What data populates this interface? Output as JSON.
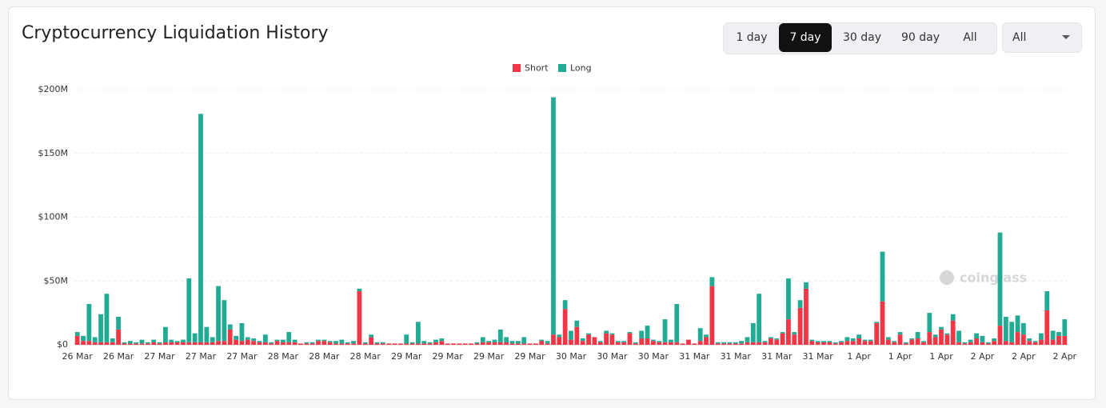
{
  "chart_data": {
    "type": "stacked_bar",
    "title": "Cryptocurrency Liquidation History",
    "watermark": "coinglass",
    "categories": [
      "26 Mar",
      null,
      null,
      null,
      null,
      null,
      null,
      "26 Mar",
      null,
      null,
      null,
      null,
      null,
      null,
      "27 Mar",
      null,
      null,
      null,
      null,
      null,
      null,
      "27 Mar",
      null,
      null,
      null,
      null,
      null,
      null,
      "27 Mar",
      null,
      null,
      null,
      null,
      null,
      null,
      "28 Mar",
      null,
      null,
      null,
      null,
      null,
      null,
      "28 Mar",
      null,
      null,
      null,
      null,
      null,
      null,
      "28 Mar",
      null,
      null,
      null,
      null,
      null,
      null,
      "29 Mar",
      null,
      null,
      null,
      null,
      null,
      null,
      "29 Mar",
      null,
      null,
      null,
      null,
      null,
      null,
      "29 Mar",
      null,
      null,
      null,
      null,
      null,
      null,
      "29 Mar",
      null,
      null,
      null,
      null,
      null,
      null,
      "30 Mar",
      null,
      null,
      null,
      null,
      null,
      null,
      "30 Mar",
      null,
      null,
      null,
      null,
      null,
      null,
      "30 Mar",
      null,
      null,
      null,
      null,
      null,
      null,
      "31 Mar",
      null,
      null,
      null,
      null,
      null,
      null,
      "31 Mar",
      null,
      null,
      null,
      null,
      null,
      null,
      "31 Mar",
      null,
      null,
      null,
      null,
      null,
      null,
      "31 Mar",
      null,
      null,
      null,
      null,
      null,
      null,
      "1 Apr",
      null,
      null,
      null,
      null,
      null,
      null,
      "1 Apr",
      null,
      null,
      null,
      null,
      null,
      null,
      "1 Apr",
      null,
      null,
      null,
      null,
      null,
      null,
      "2 Apr",
      null,
      null,
      null,
      null,
      null,
      null,
      "2 Apr",
      null,
      null,
      null,
      null,
      null,
      null,
      "2 Apr"
    ],
    "series": [
      {
        "name": "Short",
        "color": "#f23645",
        "values": [
          7,
          3,
          3,
          2,
          2,
          2,
          2,
          12,
          1,
          1,
          1,
          1,
          1,
          2,
          1,
          2,
          2,
          2,
          2,
          2,
          2,
          2,
          2,
          2,
          3,
          3,
          12,
          4,
          3,
          4,
          3,
          2,
          2,
          1,
          3,
          2,
          2,
          2,
          1,
          1,
          1,
          3,
          3,
          2,
          1,
          1,
          1,
          1,
          42,
          1,
          6,
          1,
          1,
          1,
          1,
          1,
          1,
          1,
          1,
          1,
          1,
          2,
          3,
          1,
          1,
          1,
          1,
          1,
          1,
          2,
          2,
          2,
          2,
          2,
          1,
          1,
          1,
          1,
          1,
          3,
          1,
          8,
          6,
          28,
          4,
          14,
          3,
          8,
          6,
          2,
          9,
          8,
          2,
          2,
          9,
          1,
          5,
          5,
          3,
          2,
          2,
          2,
          2,
          1,
          4,
          1,
          3,
          6,
          46,
          1,
          1,
          1,
          1,
          1,
          2,
          2,
          2,
          2,
          5,
          4,
          9,
          20,
          8,
          29,
          44,
          3,
          2,
          2,
          2,
          1,
          2,
          3,
          3,
          5,
          3,
          3,
          17,
          34,
          4,
          2,
          8,
          1,
          4,
          5,
          2,
          10,
          6,
          12,
          8,
          19,
          2,
          1,
          2,
          5,
          2,
          1,
          3,
          15,
          3,
          2,
          10,
          8,
          3,
          2,
          4,
          27,
          4,
          7,
          7
        ]
      },
      {
        "name": "Long",
        "color": "#22ab94",
        "values": [
          3,
          4,
          29,
          4,
          22,
          38,
          3,
          10,
          1,
          2,
          1,
          3,
          1,
          2,
          1,
          12,
          2,
          1,
          2,
          50,
          7,
          179,
          12,
          4,
          43,
          32,
          4,
          3,
          14,
          2,
          2,
          1,
          6,
          1,
          1,
          2,
          8,
          2,
          0,
          1,
          1,
          1,
          1,
          1,
          2,
          3,
          1,
          2,
          2,
          1,
          2,
          1,
          1,
          0,
          0,
          0,
          7,
          1,
          17,
          2,
          1,
          2,
          2,
          0,
          0,
          0,
          0,
          0,
          1,
          4,
          1,
          2,
          10,
          4,
          2,
          2,
          5,
          0,
          0,
          1,
          2,
          186,
          2,
          7,
          7,
          5,
          2,
          1,
          0,
          1,
          2,
          1,
          1,
          1,
          1,
          1,
          6,
          10,
          1,
          1,
          18,
          2,
          30,
          0,
          0,
          0,
          10,
          2,
          7,
          1,
          1,
          1,
          1,
          2,
          4,
          15,
          38,
          1,
          1,
          1,
          1,
          32,
          2,
          6,
          5,
          1,
          1,
          1,
          1,
          1,
          1,
          3,
          2,
          3,
          1,
          1,
          1,
          39,
          2,
          1,
          2,
          1,
          1,
          5,
          1,
          15,
          2,
          2,
          1,
          5,
          9,
          1,
          2,
          4,
          5,
          1,
          2,
          73,
          19,
          16,
          13,
          9,
          2,
          1,
          5,
          15,
          7,
          3,
          13
        ]
      }
    ],
    "ylim": [
      0,
      200
    ],
    "yticks": [
      {
        "value": 0,
        "label": "$0"
      },
      {
        "value": 50,
        "label": "$50M"
      },
      {
        "value": 100,
        "label": "$100M"
      },
      {
        "value": 150,
        "label": "$150M"
      },
      {
        "value": 200,
        "label": "$200M"
      }
    ],
    "grid": true,
    "legend": "top"
  },
  "controls": {
    "ranges": [
      "1 day",
      "7 day",
      "30 day",
      "90 day",
      "All"
    ],
    "active_range": 1,
    "filter": "All"
  }
}
